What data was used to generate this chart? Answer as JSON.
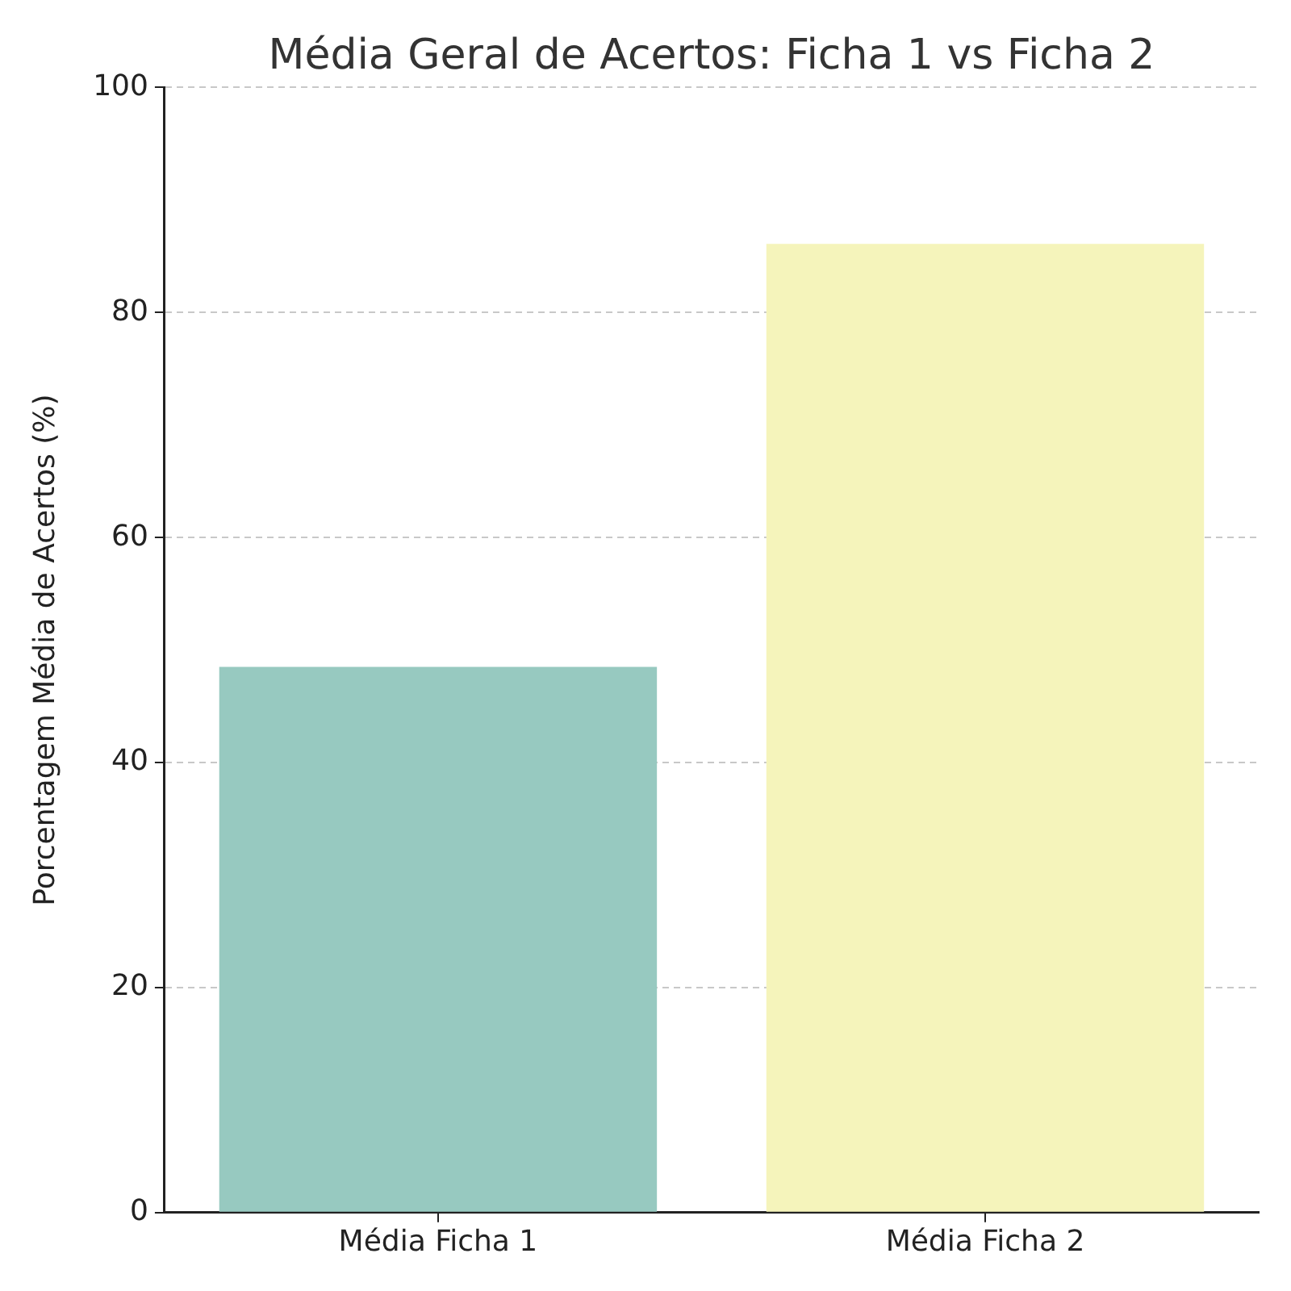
{
  "chart_data": {
    "type": "bar",
    "title": "Média Geral de Acertos: Ficha 1 vs Ficha 2",
    "ylabel": "Porcentagem Média de Acertos (%)",
    "categories": [
      "Média Ficha 1",
      "Média Ficha 2"
    ],
    "values": [
      48.5,
      86.1
    ],
    "colors": [
      "#97c9c0",
      "#f5f4bb"
    ],
    "ylim": [
      0,
      100
    ],
    "yticks": [
      0,
      20,
      40,
      60,
      80,
      100
    ],
    "grid": "y"
  }
}
